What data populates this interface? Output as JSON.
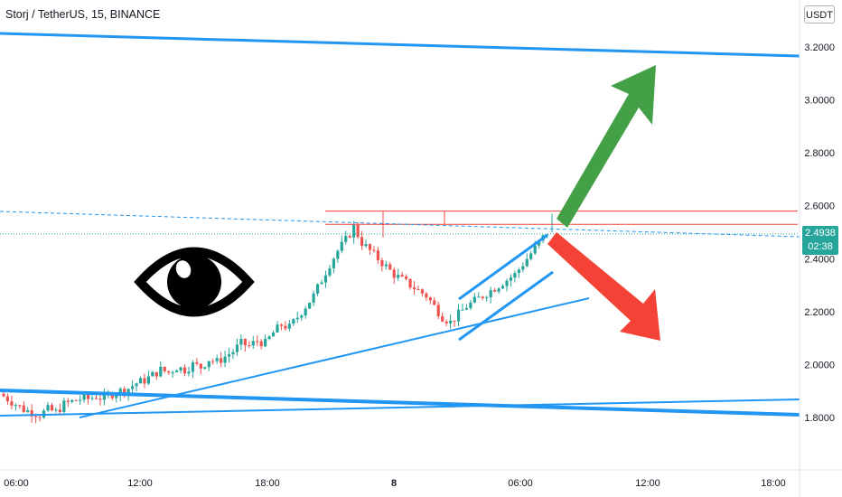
{
  "header": {
    "symbol": "Storj / TetherUS, 15, BINANCE",
    "currency": "USDT"
  },
  "price_tag": {
    "price": "2.4938",
    "countdown": "02:38",
    "color": "#26a69a"
  },
  "colors": {
    "up_candle": "#26a69a",
    "down_candle": "#ef5350",
    "trendline": "#2196f3",
    "resistance_line": "#f44336",
    "arrow_up": "#43a047",
    "arrow_down": "#f44336"
  },
  "icons": {
    "eye": "eye-icon",
    "arrow_up": "green-up-arrow-icon",
    "arrow_down": "red-down-arrow-icon"
  },
  "chart_data": {
    "type": "candlestick",
    "y_ticks": [
      "3.2000",
      "3.0000",
      "2.8000",
      "2.6000",
      "2.4000",
      "2.2000",
      "2.0000",
      "1.8000"
    ],
    "ylim": [
      1.67,
      3.33
    ],
    "x_ticks": [
      {
        "label": "06:00",
        "bold": false
      },
      {
        "label": "12:00",
        "bold": false
      },
      {
        "label": "18:00",
        "bold": false
      },
      {
        "label": "8",
        "bold": true
      },
      {
        "label": "06:00",
        "bold": false
      },
      {
        "label": "12:00",
        "bold": false
      },
      {
        "label": "18:00",
        "bold": false
      }
    ],
    "current_price": 2.4938,
    "price_path": [
      1.89,
      1.87,
      1.85,
      1.83,
      1.82,
      1.81,
      1.83,
      1.82,
      1.85,
      1.86,
      1.87,
      1.87,
      1.88,
      1.87,
      1.89,
      1.9,
      1.91,
      1.93,
      1.94,
      1.96,
      1.98,
      1.97,
      1.99,
      1.98,
      2.0,
      1.99,
      2.02,
      2.01,
      2.03,
      2.05,
      2.08,
      2.07,
      2.09,
      2.08,
      2.12,
      2.15,
      2.14,
      2.18,
      2.22,
      2.26,
      2.32,
      2.38,
      2.43,
      2.47,
      2.52,
      2.46,
      2.43,
      2.4,
      2.37,
      2.34,
      2.32,
      2.3,
      2.28,
      2.26,
      2.22,
      2.18,
      2.16,
      2.19,
      2.22,
      2.24,
      2.26,
      2.28,
      2.3,
      2.32,
      2.34,
      2.38,
      2.42,
      2.46,
      2.5
    ],
    "resistance_lines": [
      2.58,
      2.53
    ],
    "dashed_level": 2.58
  }
}
